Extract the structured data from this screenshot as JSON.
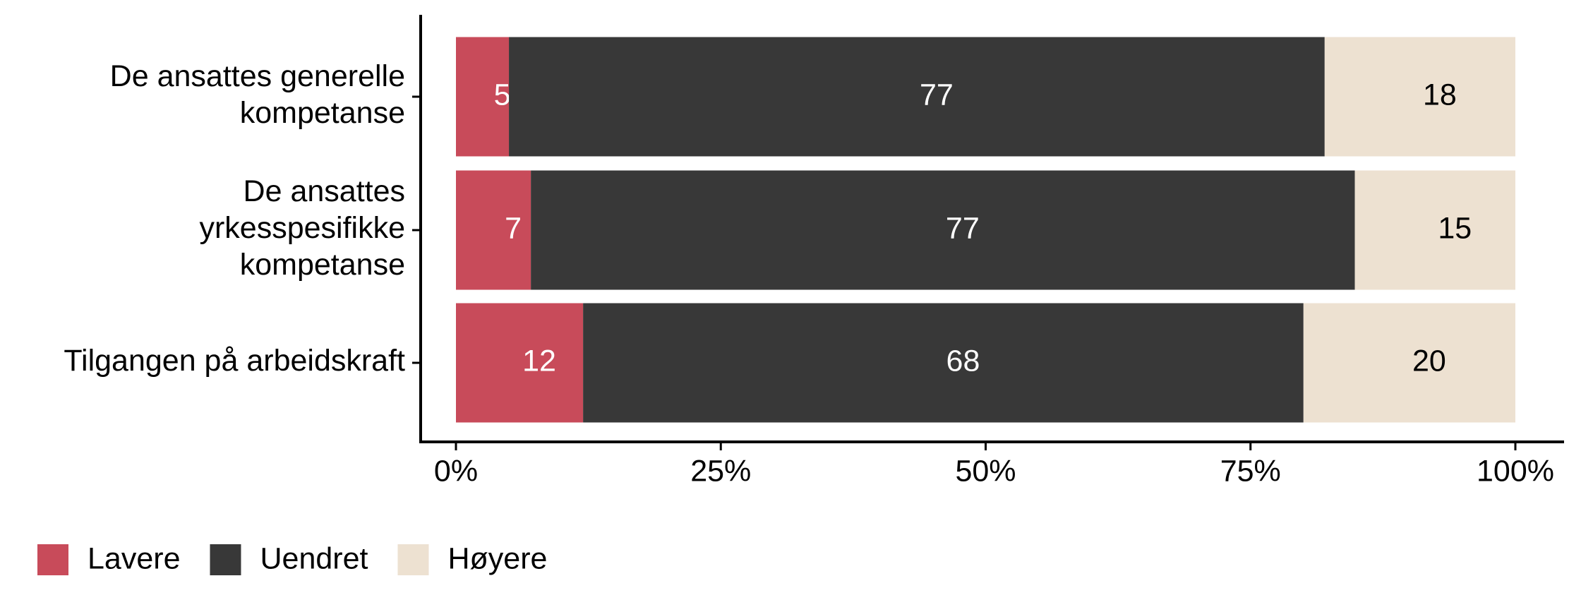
{
  "chart_data": {
    "type": "stacked-bar-horizontal",
    "stacked": "percent",
    "categories": [
      "De ansattes generelle\nkompetanse",
      "De ansattes\nyrkesspesifikke\nkompetanse",
      "Tilgangen på arbeidskraft"
    ],
    "series": [
      {
        "name": "Lavere",
        "color": "#c84b5a",
        "label_color": "#ffffff",
        "values": [
          5,
          7,
          12
        ]
      },
      {
        "name": "Uendret",
        "color": "#383838",
        "label_color": "#ffffff",
        "values": [
          77,
          77,
          68
        ]
      },
      {
        "name": "Høyere",
        "color": "#ede1d1",
        "label_color": "#000000",
        "values": [
          18,
          15,
          20
        ]
      }
    ],
    "xlim": [
      0,
      100
    ],
    "xticks": [
      {
        "value": 0,
        "label": "0%"
      },
      {
        "value": 25,
        "label": "25%"
      },
      {
        "value": 50,
        "label": "50%"
      },
      {
        "value": 75,
        "label": "75%"
      },
      {
        "value": 100,
        "label": "100%"
      }
    ],
    "legend": "bottom"
  }
}
